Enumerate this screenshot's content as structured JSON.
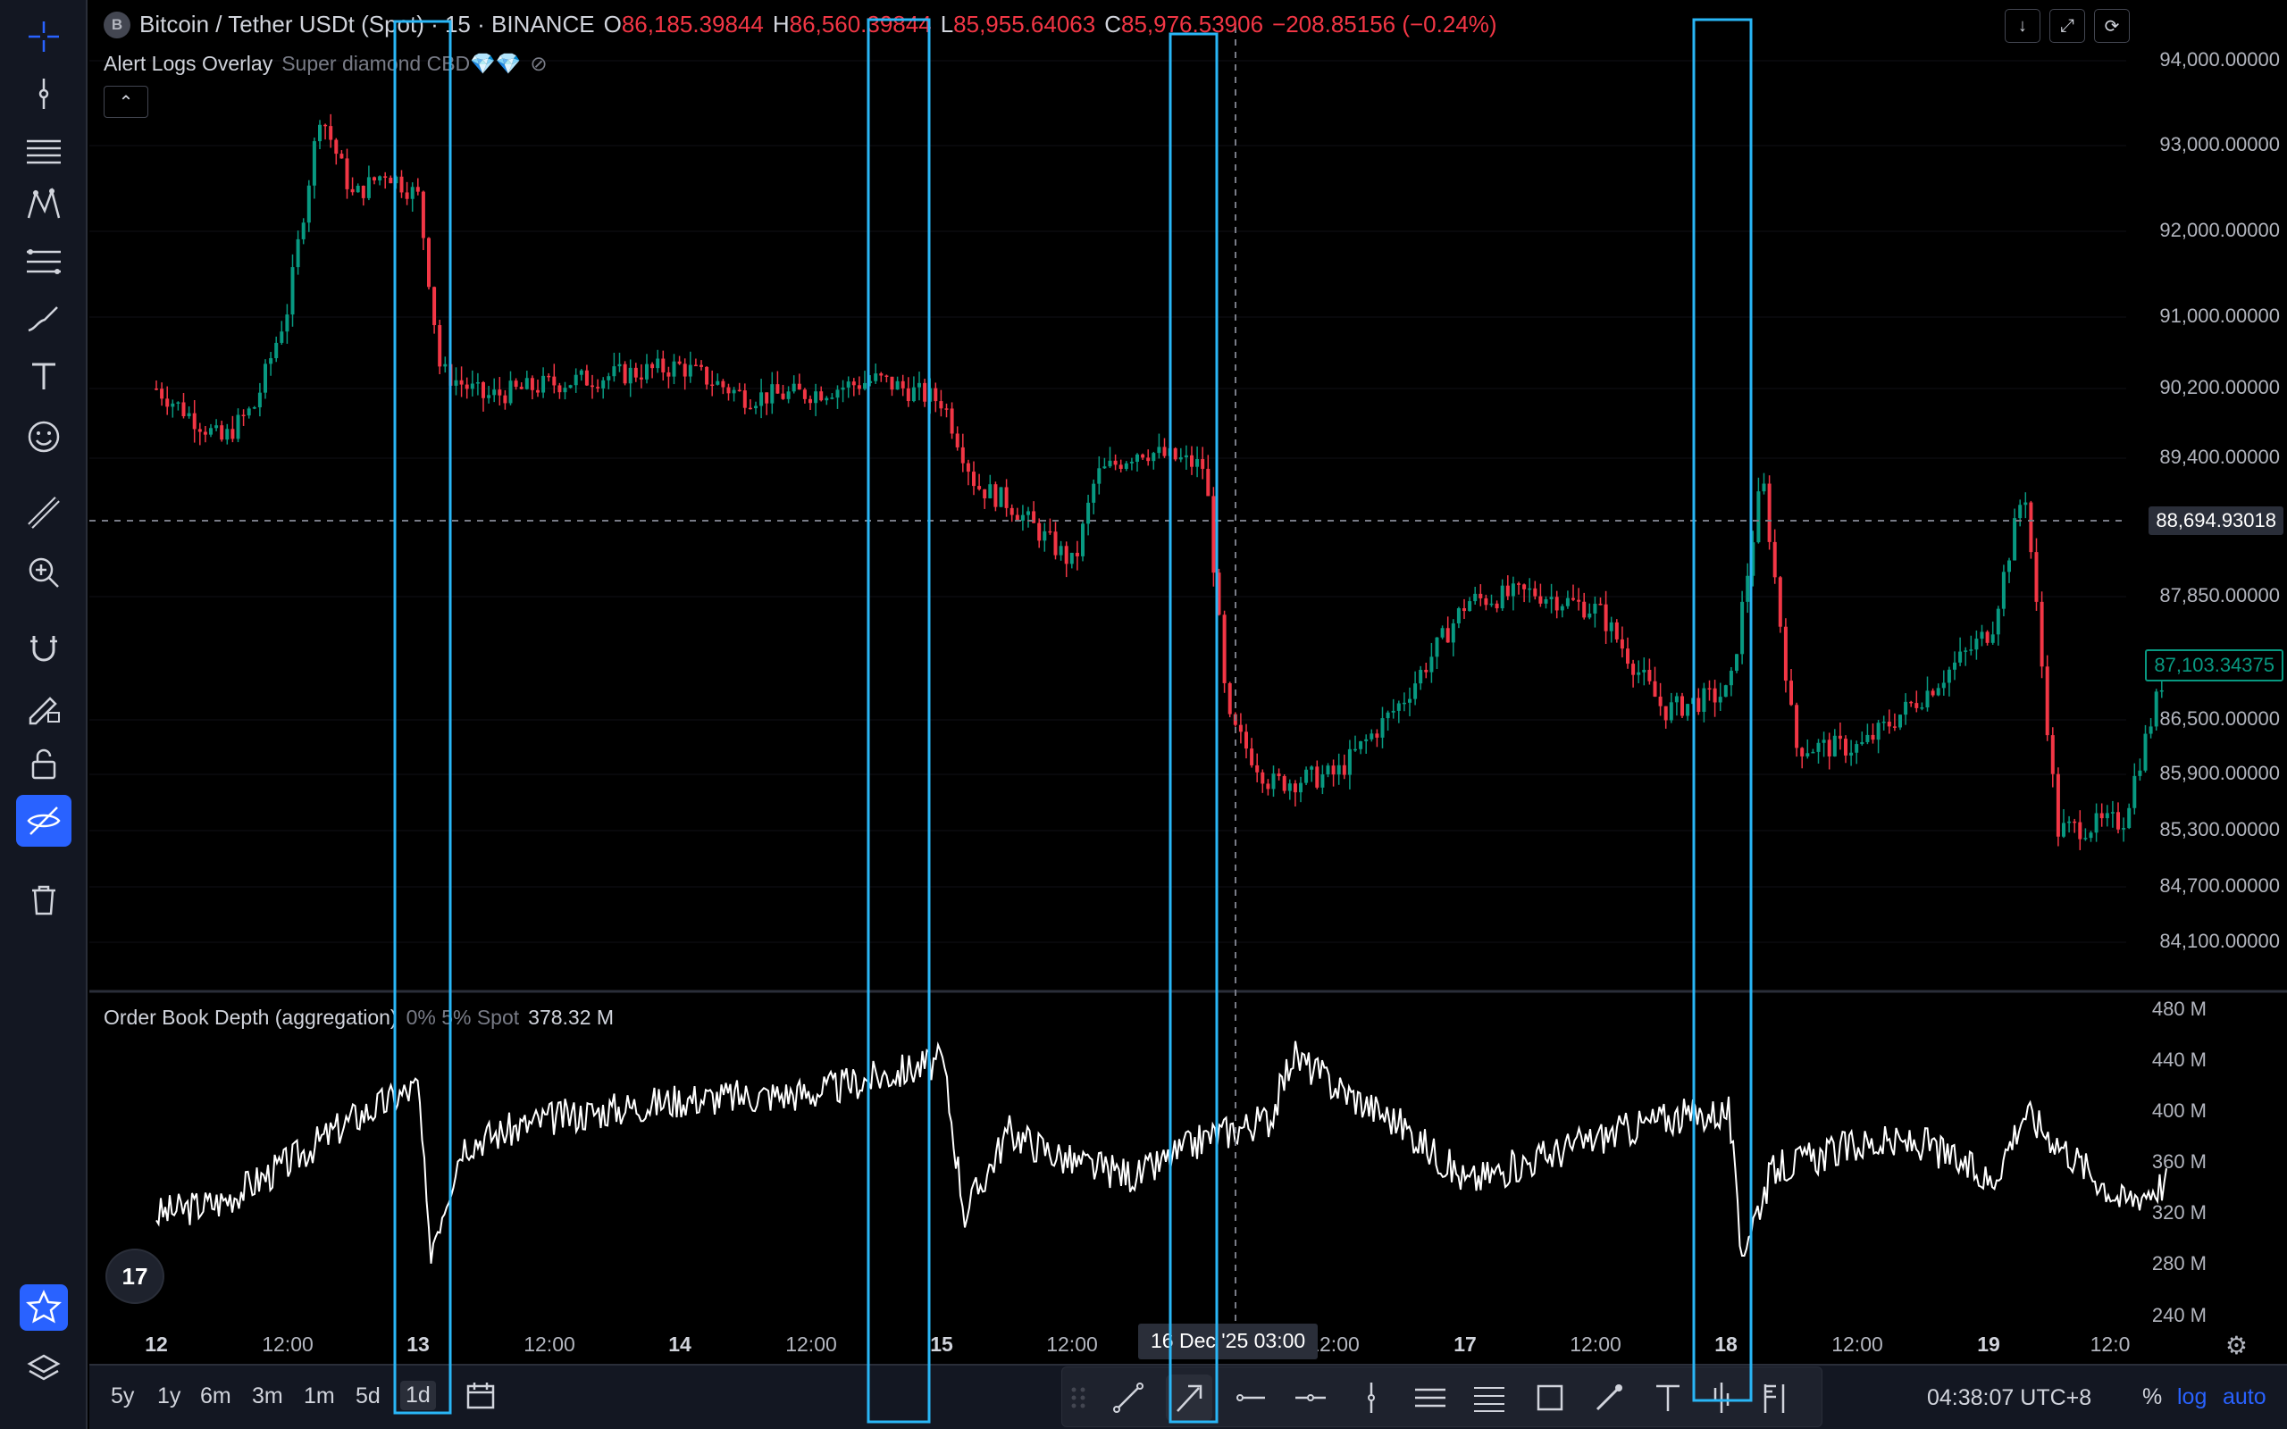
{
  "symbol": {
    "logo_letter": "B",
    "name": "Bitcoin / Tether USDt (Spot) · 15 · BINANCE",
    "open_label": "O",
    "open": "86,185.39844",
    "high_label": "H",
    "high": "86,560.39844",
    "low_label": "L",
    "low": "85,955.64063",
    "close_label": "C",
    "close": "85,976.53906",
    "change": "−208.85156 (−0.24%)"
  },
  "overlay": {
    "name": "Alert Logs Overlay",
    "params": "Super diamond CBD💎💎",
    "status_icon": "⊘"
  },
  "indicator": {
    "name": "Order Book Depth (aggregation)",
    "params": "0% 5% Spot",
    "value": "378.32 M"
  },
  "price_axis": [
    "94,000.00000",
    "93,000.00000",
    "92,000.00000",
    "91,000.00000",
    "90,200.00000",
    "89,400.00000",
    "87,850.00000",
    "86,500.00000",
    "85,900.00000",
    "85,300.00000",
    "84,700.00000",
    "84,100.00000"
  ],
  "crosshair_price": "88,694.93018",
  "last_price": "87,103.34375",
  "depth_axis": [
    "480 M",
    "440 M",
    "400 M",
    "360 M",
    "320 M",
    "280 M",
    "240 M"
  ],
  "time_axis": [
    "12",
    "12:00",
    "13",
    "12:00",
    "14",
    "12:00",
    "15",
    "12:00",
    "16",
    "12:00",
    "17",
    "12:00",
    "18",
    "12:00",
    "19",
    "12:0"
  ],
  "crosshair_time": "16 Dec '25   03:00",
  "ranges": [
    "5y",
    "1y",
    "6m",
    "3m",
    "1m",
    "5d",
    "1d"
  ],
  "clock": "04:38:07 UTC+8",
  "options": {
    "percent": "%",
    "log": "log",
    "auto": "auto"
  },
  "colors": {
    "up": "#089981",
    "down": "#f23645",
    "accent": "#2962ff",
    "highlight": "#29b6f6",
    "toolbar": "#131722"
  },
  "icons": [
    "crosshair-icon",
    "vertical-line-icon",
    "horizontal-lines-icon",
    "pattern-icon",
    "fib-icon",
    "brush-icon",
    "text-icon",
    "emoji-icon",
    "ruler-icon",
    "zoom-icon",
    "magnet-icon",
    "lock-drawing-icon",
    "lock-icon",
    "hide-drawings-icon",
    "trash-icon",
    "star-icon",
    "layers-icon"
  ],
  "chart_data": {
    "type": "candlestick",
    "main": {
      "timeframe": "15",
      "series": [
        {
          "t": "12 00:00",
          "p": 90200
        },
        {
          "t": "12 06:00",
          "p": 89600
        },
        {
          "t": "12 09:00",
          "p": 90000
        },
        {
          "t": "12 12:00",
          "p": 91100
        },
        {
          "t": "12 15:00",
          "p": 93400
        },
        {
          "t": "12 18:00",
          "p": 92400
        },
        {
          "t": "12 21:00",
          "p": 92700
        },
        {
          "t": "13 00:00",
          "p": 92400
        },
        {
          "t": "13 02:00",
          "p": 90400
        },
        {
          "t": "13 06:00",
          "p": 90100
        },
        {
          "t": "13 12:00",
          "p": 90250
        },
        {
          "t": "13 18:00",
          "p": 90350
        },
        {
          "t": "14 00:00",
          "p": 90450
        },
        {
          "t": "14 06:00",
          "p": 90100
        },
        {
          "t": "14 12:00",
          "p": 90150
        },
        {
          "t": "14 18:00",
          "p": 90300
        },
        {
          "t": "15 00:00",
          "p": 90050
        },
        {
          "t": "15 03:00",
          "p": 89100
        },
        {
          "t": "15 06:00",
          "p": 88900
        },
        {
          "t": "15 12:00",
          "p": 88200
        },
        {
          "t": "15 14:00",
          "p": 89200
        },
        {
          "t": "15 18:00",
          "p": 89500
        },
        {
          "t": "16 00:00",
          "p": 89300
        },
        {
          "t": "16 02:00",
          "p": 86500
        },
        {
          "t": "16 06:00",
          "p": 85800
        },
        {
          "t": "16 12:00",
          "p": 85900
        },
        {
          "t": "16 18:00",
          "p": 86700
        },
        {
          "t": "17 00:00",
          "p": 87800
        },
        {
          "t": "17 06:00",
          "p": 87900
        },
        {
          "t": "17 12:00",
          "p": 87700
        },
        {
          "t": "17 18:00",
          "p": 86600
        },
        {
          "t": "18 00:00",
          "p": 86800
        },
        {
          "t": "18 03:00",
          "p": 89200
        },
        {
          "t": "18 06:00",
          "p": 86200
        },
        {
          "t": "18 12:00",
          "p": 86200
        },
        {
          "t": "18 18:00",
          "p": 86800
        },
        {
          "t": "19 00:00",
          "p": 87500
        },
        {
          "t": "19 03:00",
          "p": 89100
        },
        {
          "t": "19 06:00",
          "p": 85300
        },
        {
          "t": "19 12:00",
          "p": 85400
        },
        {
          "t": "19 16:00",
          "p": 87100
        }
      ]
    },
    "depth": {
      "unit": "M",
      "ylim": [
        240,
        480
      ],
      "series": [
        {
          "t": "12 00:00",
          "v": 320
        },
        {
          "t": "12 06:00",
          "v": 330
        },
        {
          "t": "12 12:00",
          "v": 360
        },
        {
          "t": "12 18:00",
          "v": 395
        },
        {
          "t": "13 00:00",
          "v": 420
        },
        {
          "t": "13 01:00",
          "v": 290
        },
        {
          "t": "13 04:00",
          "v": 375
        },
        {
          "t": "13 12:00",
          "v": 395
        },
        {
          "t": "14 00:00",
          "v": 410
        },
        {
          "t": "14 12:00",
          "v": 415
        },
        {
          "t": "15 00:00",
          "v": 440
        },
        {
          "t": "15 02:00",
          "v": 320
        },
        {
          "t": "15 06:00",
          "v": 385
        },
        {
          "t": "15 12:00",
          "v": 360
        },
        {
          "t": "15 18:00",
          "v": 350
        },
        {
          "t": "16 00:00",
          "v": 380
        },
        {
          "t": "16 06:00",
          "v": 395
        },
        {
          "t": "16 08:00",
          "v": 445
        },
        {
          "t": "16 12:00",
          "v": 420
        },
        {
          "t": "16 18:00",
          "v": 390
        },
        {
          "t": "17 00:00",
          "v": 345
        },
        {
          "t": "17 12:00",
          "v": 380
        },
        {
          "t": "17 18:00",
          "v": 395
        },
        {
          "t": "18 00:00",
          "v": 400
        },
        {
          "t": "18 01:00",
          "v": 290
        },
        {
          "t": "18 04:00",
          "v": 355
        },
        {
          "t": "18 12:00",
          "v": 375
        },
        {
          "t": "18 18:00",
          "v": 375
        },
        {
          "t": "19 00:00",
          "v": 345
        },
        {
          "t": "19 03:00",
          "v": 400
        },
        {
          "t": "19 12:00",
          "v": 330
        },
        {
          "t": "19 16:00",
          "v": 345
        }
      ]
    },
    "highlight_windows": [
      "13 00:00–13 04:00",
      "15 01:00–15 06:00",
      "16 00:00–16 04:00",
      "18 00:00–18 04:00"
    ]
  }
}
